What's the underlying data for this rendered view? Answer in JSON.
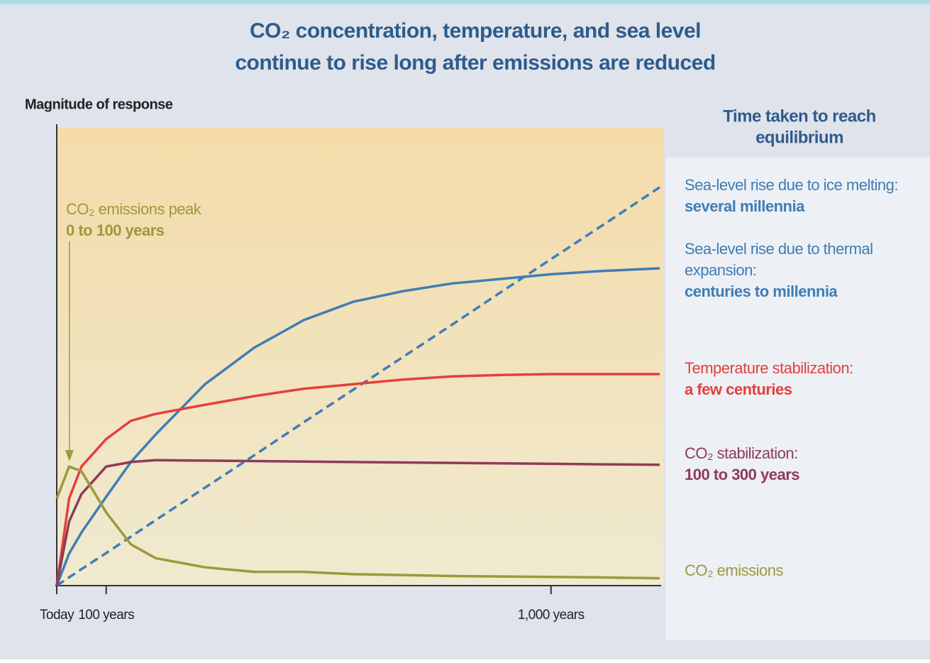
{
  "chart_data": {
    "type": "line",
    "title": [
      "CO₂ concentration, temperature, and sea level",
      "continue to rise long after emissions are reduced"
    ],
    "y_label": "Magnitude of response",
    "legend_title": [
      "Time taken to reach",
      "equilibrium"
    ],
    "annotation": {
      "lines": [
        "CO₂ emissions peak",
        "0 to 100 years"
      ],
      "x": 40
    },
    "x": [
      0,
      25,
      50,
      100,
      150,
      200,
      300,
      400,
      500,
      600,
      700,
      800,
      900,
      1000,
      1100,
      1220
    ],
    "xlim": [
      0,
      1220
    ],
    "ylim": [
      0,
      100
    ],
    "xticks": [
      {
        "value": 0,
        "label": "Today"
      },
      {
        "value": 100,
        "label": "100 years"
      },
      {
        "value": 1000,
        "label": "1,000 years"
      }
    ],
    "series": [
      {
        "label": [
          "Sea-level rise due to ice melting:"
        ],
        "duration": "several millennia",
        "color": "#3f7db6",
        "dashed": true,
        "values": [
          0,
          1.8,
          3.6,
          7.1,
          10.7,
          14.3,
          21.4,
          28.5,
          35.7,
          42.8,
          49.9,
          57,
          64.2,
          71.3,
          78.4,
          87
        ]
      },
      {
        "label": [
          "Sea-level rise due to thermal",
          "expansion:"
        ],
        "duration": "centuries to millennia",
        "color": "#3f7db6",
        "values": [
          0,
          7,
          11.6,
          19.4,
          27,
          33,
          44,
          52,
          58,
          62,
          64.3,
          66,
          67,
          68,
          68.7,
          69.3
        ]
      },
      {
        "label": [
          "Temperature stabilization:"
        ],
        "duration": "a few centuries",
        "color": "#e2403e",
        "values": [
          0,
          19,
          26,
          32,
          36,
          37.5,
          39.5,
          41.4,
          43,
          44,
          45,
          45.7,
          46,
          46.2,
          46.2,
          46.2
        ]
      },
      {
        "label": [
          "CO₂ stabilization:"
        ],
        "duration": "100 to 300 years",
        "color": "#8e3b5c",
        "values": [
          0,
          14,
          20,
          26,
          27,
          27.4,
          27.3,
          27.2,
          27.1,
          27,
          26.9,
          26.8,
          26.7,
          26.6,
          26.5,
          26.4
        ]
      },
      {
        "label": [
          "CO₂ emissions"
        ],
        "color": "#9b9a3c",
        "values": [
          19,
          26,
          25,
          16,
          9,
          6,
          4,
          3,
          3,
          2.5,
          2.3,
          2.1,
          2,
          1.9,
          1.8,
          1.6
        ]
      }
    ]
  }
}
